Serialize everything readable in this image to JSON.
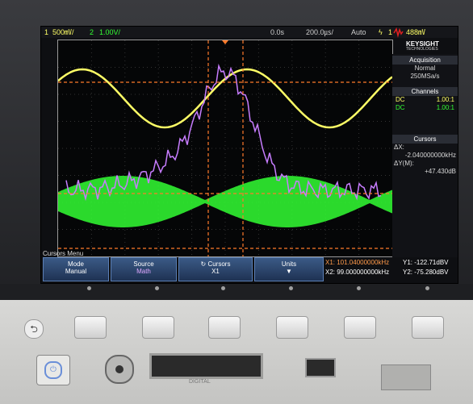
{
  "topbar": {
    "ch1_num": "1",
    "ch1_scale": "500㎷/",
    "ch2_num": "2",
    "ch2_scale": "1.00V/",
    "time_offset": "0.0s",
    "timebase": "200.0㎲/",
    "trigger_mode": "Auto",
    "trigger_icon": "lightning-icon",
    "trigger_ch": "1",
    "trigger_level": "488㎷"
  },
  "brand": {
    "name": "KEYSIGHT",
    "sub": "TECHNOLOGIES",
    "color": "#e02020"
  },
  "acquisition": {
    "title": "Acquisition",
    "mode": "Normal",
    "rate": "250MSa/s"
  },
  "channels": {
    "title": "Channels",
    "rows": [
      {
        "coupling": "DC",
        "ratio": "1.00:1",
        "color": "#ffff66"
      },
      {
        "coupling": "DC",
        "ratio": "1.00:1",
        "color": "#33ff33"
      }
    ]
  },
  "cursors_panel": {
    "title": "Cursors",
    "dx_label": "ΔX:",
    "dx_value": "-2.040000000kHz",
    "dy_label": "ΔY(M):",
    "dy_value": "+47.430dB"
  },
  "menu": {
    "title": "Cursors Menu",
    "buttons": [
      {
        "label": "Mode",
        "value": "Manual"
      },
      {
        "label": "Source",
        "value": "Math"
      },
      {
        "label": "Cursors",
        "value": "X1"
      },
      {
        "label": "Units",
        "value": "▼"
      }
    ],
    "x1": "X1: 101.04000000kHz",
    "x2": "X2: 99.000000000kHz",
    "y1": "Y1: -122.71dBV",
    "y2": "Y2: -75.280dBV"
  },
  "front_panel": {
    "digital_label": "DIGITAL",
    "power_icon": "power-icon"
  },
  "colors": {
    "ch1": "#ffff66",
    "ch2": "#33ff33",
    "math": "#c77dff",
    "cursor": "#ff7a2a",
    "accent": "#3b5a86"
  }
}
